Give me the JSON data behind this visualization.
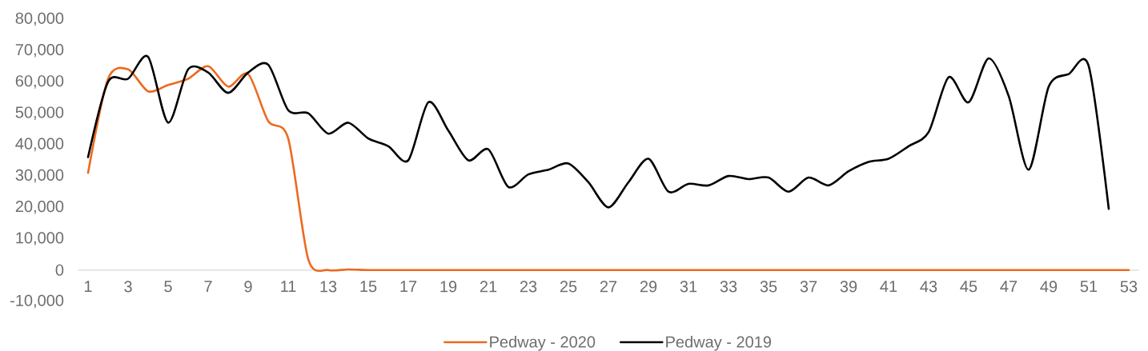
{
  "chart_data": {
    "type": "line",
    "categories": [
      "1",
      null,
      "3",
      null,
      "5",
      null,
      "7",
      null,
      "9",
      null,
      "11",
      null,
      "13",
      null,
      "15",
      null,
      "17",
      null,
      "19",
      null,
      "21",
      null,
      "23",
      null,
      "25",
      null,
      "27",
      null,
      "29",
      null,
      "31",
      null,
      "33",
      null,
      "35",
      null,
      "37",
      null,
      "39",
      null,
      "41",
      null,
      "43",
      null,
      "45",
      null,
      "47",
      null,
      "49",
      null,
      "51",
      null,
      "53"
    ],
    "series": [
      {
        "name": "Pedway - 2020",
        "color": "#ec6a1f",
        "values": [
          31000,
          61000,
          64000,
          57000,
          59000,
          61000,
          65000,
          58500,
          62500,
          47500,
          42000,
          3500,
          0,
          200,
          0,
          0,
          0,
          0,
          0,
          0,
          0,
          0,
          0,
          0,
          0,
          0,
          0,
          0,
          0,
          0,
          0,
          0,
          0,
          0,
          0,
          0,
          0,
          0,
          0,
          0,
          0,
          0,
          0,
          0,
          0,
          0,
          0,
          0,
          0,
          0,
          0,
          0,
          0
        ]
      },
      {
        "name": "Pedway - 2019",
        "color": "#000000",
        "values": [
          36000,
          60000,
          61000,
          68000,
          47000,
          64000,
          63000,
          56500,
          63000,
          65500,
          51000,
          50000,
          43500,
          47000,
          42000,
          39500,
          35000,
          53500,
          44500,
          35000,
          38500,
          26500,
          30500,
          32000,
          34000,
          28000,
          20000,
          28000,
          35500,
          25000,
          27500,
          27000,
          30000,
          29000,
          29500,
          25000,
          29500,
          27000,
          31500,
          34500,
          35500,
          39500,
          44000,
          61500,
          53500,
          67500,
          55500,
          32000,
          58500,
          62500,
          65000,
          19500,
          null
        ]
      }
    ],
    "ylim": [
      -10000,
      80000
    ],
    "yticks": [
      {
        "value": -10000,
        "label": "-10,000"
      },
      {
        "value": 0,
        "label": "0"
      },
      {
        "value": 10000,
        "label": "10,000"
      },
      {
        "value": 20000,
        "label": "20,000"
      },
      {
        "value": 30000,
        "label": "30,000"
      },
      {
        "value": 40000,
        "label": "40,000"
      },
      {
        "value": 50000,
        "label": "50,000"
      },
      {
        "value": 60000,
        "label": "60,000"
      },
      {
        "value": 70000,
        "label": "70,000"
      },
      {
        "value": 80000,
        "label": "80,000"
      }
    ],
    "legend": "bottom"
  }
}
